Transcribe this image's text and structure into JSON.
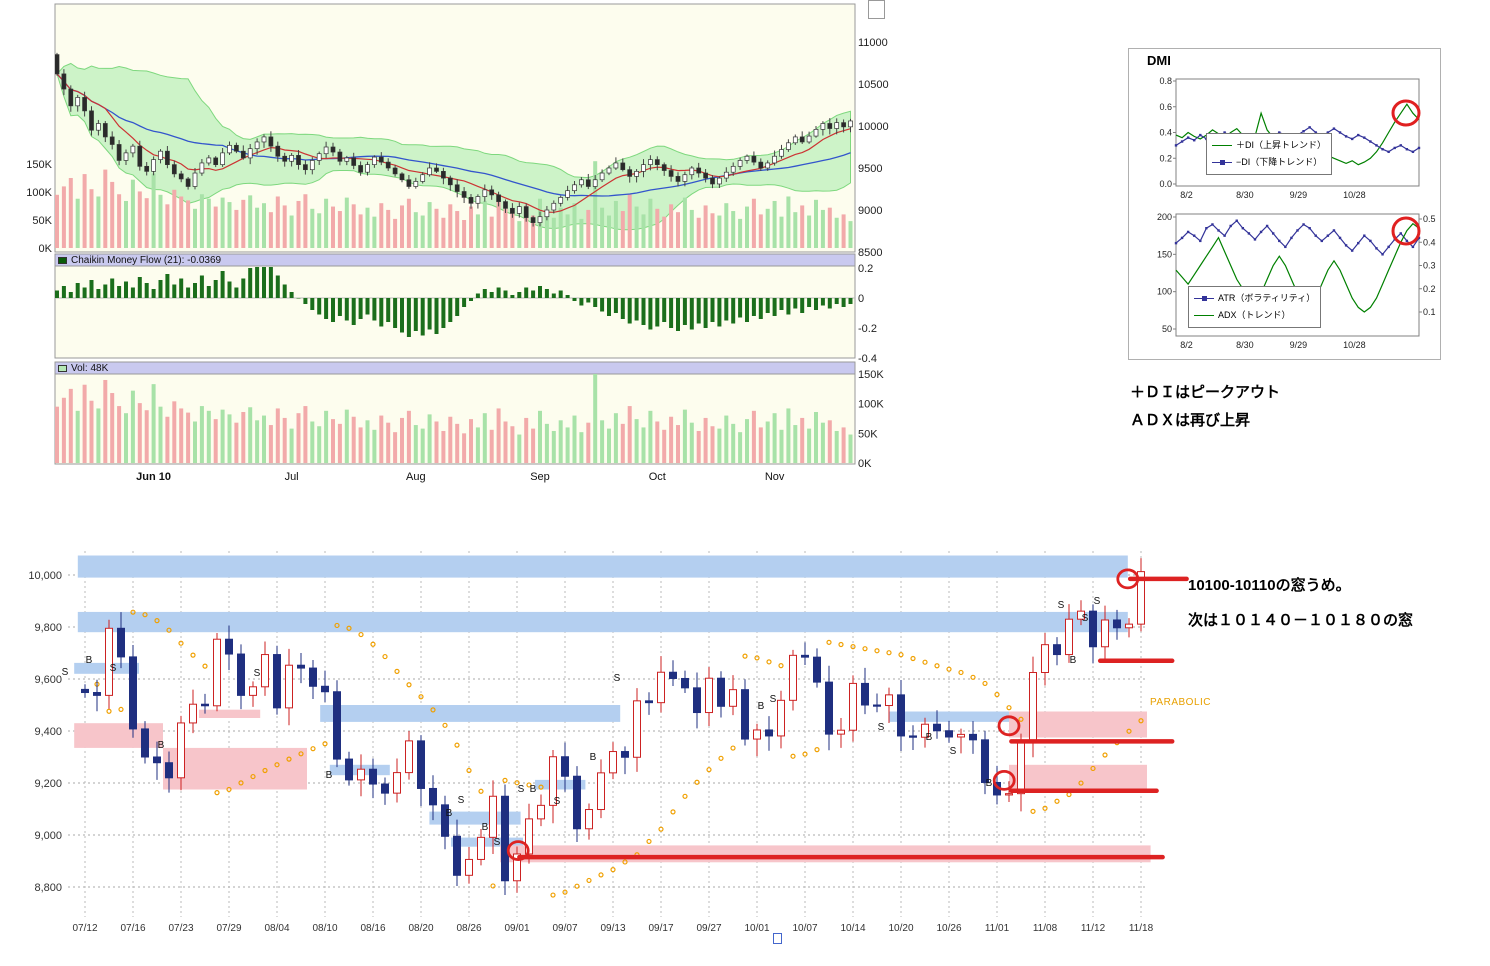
{
  "colors": {
    "plot_bg": "#fdfdee",
    "header_strip": "#c9c9ef",
    "band_green": "#b8eeb8",
    "ma_red": "#cc3333",
    "ma_blue": "#3355cc",
    "chaikin_bar": "#1b6e1b",
    "vol_up": "#a8e2a8",
    "vol_down": "#f2aaaa",
    "zone_blue": "#b4cff0",
    "zone_pink": "#f7c5ca",
    "candle_up_outline": "#cc2222",
    "candle_down": "#1f2f80",
    "psar": "#f0a000",
    "red_annotation": "#dd2222",
    "di_plus_green": "#008000",
    "di_minus_blue": "#333399"
  },
  "dmi_panel": {
    "notes": [
      "＋ＤＩはピークアウト",
      "ＡＤＸは再び上昇"
    ]
  },
  "bottom_chart": {
    "annotations": [
      "10100-10110の窓うめ。",
      "次は１０１４０－１０１８０の窓"
    ]
  },
  "chart_data": [
    {
      "id": "main_price_chart",
      "type": "candlestick",
      "y_ticks": [
        11000,
        10500,
        10000,
        9500,
        9000,
        8500
      ],
      "vol_overlay_ticks": [
        {
          "label": "150K",
          "v": 150
        },
        {
          "label": "100K",
          "v": 100
        },
        {
          "label": "50K",
          "v": 50
        },
        {
          "label": "0K",
          "v": 0
        }
      ],
      "x_labels": [
        {
          "label": "Jun 10",
          "i": 14,
          "bold": true
        },
        {
          "label": "Jul",
          "i": 34
        },
        {
          "label": "Aug",
          "i": 52
        },
        {
          "label": "Sep",
          "i": 70
        },
        {
          "label": "Oct",
          "i": 87
        },
        {
          "label": "Nov",
          "i": 104
        }
      ],
      "overlays": [
        "bollinger-band",
        "ma-short-red",
        "ma-long-blue",
        "volume-overlay"
      ],
      "closes": [
        10620,
        10440,
        10240,
        10340,
        10180,
        9950,
        10030,
        9870,
        9780,
        9590,
        9680,
        9760,
        9520,
        9460,
        9600,
        9700,
        9540,
        9430,
        9370,
        9280,
        9440,
        9560,
        9620,
        9540,
        9680,
        9770,
        9700,
        9620,
        9730,
        9810,
        9870,
        9760,
        9640,
        9580,
        9650,
        9540,
        9480,
        9590,
        9670,
        9750,
        9690,
        9580,
        9620,
        9530,
        9450,
        9540,
        9630,
        9570,
        9500,
        9430,
        9360,
        9280,
        9340,
        9420,
        9500,
        9460,
        9380,
        9300,
        9220,
        9150,
        9080,
        9160,
        9240,
        9180,
        9100,
        9020,
        8960,
        9040,
        8910,
        8850,
        8920,
        9000,
        9080,
        9150,
        9230,
        9300,
        9360,
        9280,
        9360,
        9440,
        9500,
        9560,
        9480,
        9400,
        9460,
        9540,
        9600,
        9540,
        9470,
        9400,
        9340,
        9420,
        9500,
        9440,
        9380,
        9310,
        9380,
        9450,
        9520,
        9590,
        9640,
        9570,
        9500,
        9560,
        9640,
        9720,
        9800,
        9870,
        9810,
        9880,
        9960,
        10030,
        9970,
        10040,
        9990,
        10060
      ]
    },
    {
      "id": "chaikin",
      "type": "bar",
      "label": "Chaikin Money Flow (21): -0.0369",
      "y_ticks": [
        {
          "label": "0.2",
          "v": 0.2
        },
        {
          "label": "0",
          "v": 0
        },
        {
          "label": "-0.2",
          "v": -0.2
        },
        {
          "label": "-0.4",
          "v": -0.4
        }
      ],
      "values": [
        0.05,
        0.08,
        0.04,
        0.1,
        0.07,
        0.12,
        0.06,
        0.09,
        0.13,
        0.08,
        0.11,
        0.07,
        0.14,
        0.1,
        0.06,
        0.12,
        0.16,
        0.09,
        0.13,
        0.07,
        0.1,
        0.15,
        0.08,
        0.12,
        0.18,
        0.11,
        0.07,
        0.13,
        0.2,
        0.24,
        0.26,
        0.21,
        0.15,
        0.09,
        0.04,
        0.0,
        -0.04,
        -0.08,
        -0.11,
        -0.14,
        -0.16,
        -0.12,
        -0.15,
        -0.18,
        -0.14,
        -0.11,
        -0.15,
        -0.19,
        -0.16,
        -0.2,
        -0.23,
        -0.26,
        -0.22,
        -0.25,
        -0.21,
        -0.24,
        -0.2,
        -0.16,
        -0.12,
        -0.06,
        -0.02,
        0.03,
        0.06,
        0.04,
        0.07,
        0.05,
        0.02,
        0.04,
        0.07,
        0.05,
        0.08,
        0.06,
        0.03,
        0.05,
        0.02,
        -0.02,
        -0.05,
        -0.03,
        -0.06,
        -0.09,
        -0.12,
        -0.1,
        -0.14,
        -0.17,
        -0.15,
        -0.18,
        -0.21,
        -0.19,
        -0.16,
        -0.2,
        -0.22,
        -0.18,
        -0.21,
        -0.17,
        -0.2,
        -0.16,
        -0.19,
        -0.15,
        -0.17,
        -0.13,
        -0.16,
        -0.12,
        -0.14,
        -0.1,
        -0.12,
        -0.08,
        -0.11,
        -0.07,
        -0.1,
        -0.06,
        -0.08,
        -0.05,
        -0.07,
        -0.04,
        -0.06,
        -0.04
      ]
    },
    {
      "id": "volume",
      "type": "bar",
      "label": "Vol: 48K",
      "y_ticks": [
        {
          "label": "150K",
          "v": 150
        },
        {
          "label": "100K",
          "v": 100
        },
        {
          "label": "50K",
          "v": 50
        },
        {
          "label": "0K",
          "v": 0
        }
      ],
      "values": [
        95,
        110,
        125,
        88,
        132,
        105,
        92,
        140,
        118,
        96,
        84,
        122,
        101,
        89,
        133,
        95,
        78,
        104,
        92,
        85,
        70,
        96,
        88,
        74,
        90,
        82,
        68,
        86,
        94,
        72,
        80,
        64,
        92,
        76,
        58,
        84,
        96,
        70,
        62,
        88,
        74,
        66,
        90,
        78,
        60,
        72,
        56,
        80,
        68,
        52,
        76,
        88,
        64,
        58,
        82,
        70,
        54,
        78,
        66,
        50,
        74,
        60,
        84,
        56,
        92,
        70,
        62,
        48,
        76,
        58,
        88,
        66,
        54,
        72,
        60,
        80,
        52,
        68,
        155,
        72,
        58,
        84,
        66,
        96,
        74,
        60,
        88,
        70,
        56,
        78,
        64,
        90,
        68,
        54,
        76,
        62,
        58,
        80,
        66,
        52,
        74,
        88,
        60,
        70,
        84,
        56,
        92,
        64,
        76,
        58,
        86,
        68,
        72,
        54,
        60,
        48
      ]
    },
    {
      "id": "dmi",
      "type": "line",
      "title": "DMI",
      "ylim": [
        0,
        0.8
      ],
      "y_ticks": [
        {
          "label": "0.8",
          "v": 0.8
        },
        {
          "label": "0.6",
          "v": 0.6
        },
        {
          "label": "0.4",
          "v": 0.4
        },
        {
          "label": "0.2",
          "v": 0.2
        },
        {
          "label": "0.0",
          "v": 0
        }
      ],
      "x_labels": [
        {
          "label": "8/2",
          "f": 0.03
        },
        {
          "label": "8/30",
          "f": 0.26
        },
        {
          "label": "9/29",
          "f": 0.48
        },
        {
          "label": "10/28",
          "f": 0.7
        }
      ],
      "series": [
        {
          "name": "＋DI（上昇トレンド）",
          "color": "#008000",
          "marker": false,
          "values": [
            0.38,
            0.36,
            0.4,
            0.37,
            0.35,
            0.38,
            0.42,
            0.39,
            0.36,
            0.4,
            0.43,
            0.38,
            0.35,
            0.37,
            0.55,
            0.42,
            0.36,
            0.32,
            0.35,
            0.38,
            0.36,
            0.33,
            0.3,
            0.28,
            0.25,
            0.22,
            0.2,
            0.18,
            0.16,
            0.18,
            0.15,
            0.17,
            0.2,
            0.25,
            0.32,
            0.4,
            0.48,
            0.55,
            0.62,
            0.55,
            0.5
          ]
        },
        {
          "name": "−DI（下降トレンド）",
          "color": "#333399",
          "marker": true,
          "values": [
            0.3,
            0.33,
            0.36,
            0.34,
            0.38,
            0.35,
            0.32,
            0.36,
            0.4,
            0.37,
            0.34,
            0.31,
            0.35,
            0.38,
            0.3,
            0.34,
            0.37,
            0.4,
            0.38,
            0.35,
            0.38,
            0.41,
            0.44,
            0.4,
            0.37,
            0.4,
            0.43,
            0.4,
            0.37,
            0.35,
            0.38,
            0.36,
            0.33,
            0.3,
            0.27,
            0.25,
            0.28,
            0.3,
            0.27,
            0.25,
            0.28
          ]
        }
      ]
    },
    {
      "id": "atr_adx",
      "type": "line",
      "left_ticks": [
        {
          "label": "200",
          "v": 200
        },
        {
          "label": "150",
          "v": 150
        },
        {
          "label": "100",
          "v": 100
        },
        {
          "label": "50",
          "v": 50
        }
      ],
      "right_ticks": [
        {
          "label": "0.5",
          "v": 0.5
        },
        {
          "label": "0.4",
          "v": 0.4
        },
        {
          "label": "0.3",
          "v": 0.3
        },
        {
          "label": "0.2",
          "v": 0.2
        },
        {
          "label": "0.1",
          "v": 0.1
        }
      ],
      "x_labels": [
        {
          "label": "8/2",
          "f": 0.03
        },
        {
          "label": "8/30",
          "f": 0.26
        },
        {
          "label": "9/29",
          "f": 0.48
        },
        {
          "label": "10/28",
          "f": 0.7
        }
      ],
      "series": [
        {
          "name": "ATR（ボラティリティ）",
          "axis": "left",
          "color": "#333399",
          "marker": true,
          "values": [
            165,
            172,
            180,
            175,
            168,
            185,
            190,
            182,
            175,
            188,
            195,
            185,
            178,
            170,
            180,
            188,
            178,
            168,
            160,
            172,
            182,
            190,
            185,
            175,
            168,
            175,
            182,
            172,
            162,
            155,
            165,
            175,
            168,
            158,
            150,
            160,
            170,
            178,
            168,
            160,
            172
          ]
        },
        {
          "name": "ADX（トレンド）",
          "axis": "right",
          "color": "#008000",
          "marker": false,
          "values": [
            0.28,
            0.25,
            0.22,
            0.26,
            0.3,
            0.34,
            0.38,
            0.42,
            0.36,
            0.3,
            0.24,
            0.2,
            0.16,
            0.14,
            0.18,
            0.24,
            0.3,
            0.34,
            0.3,
            0.24,
            0.18,
            0.14,
            0.12,
            0.16,
            0.22,
            0.28,
            0.32,
            0.28,
            0.22,
            0.16,
            0.12,
            0.1,
            0.12,
            0.16,
            0.22,
            0.28,
            0.34,
            0.4,
            0.45,
            0.48,
            0.46
          ]
        }
      ]
    },
    {
      "id": "daily_chart",
      "type": "candlestick",
      "parabolic_label": "PARABOLIC",
      "y_ticks": [
        {
          "label": "10,000",
          "v": 10000
        },
        {
          "label": "9,800",
          "v": 9800
        },
        {
          "label": "9,600",
          "v": 9600
        },
        {
          "label": "9,400",
          "v": 9400
        },
        {
          "label": "9,200",
          "v": 9200
        },
        {
          "label": "9,000",
          "v": 9000
        },
        {
          "label": "8,800",
          "v": 8800
        }
      ],
      "x_labels": [
        "07/12",
        "07/16",
        "07/23",
        "07/29",
        "08/04",
        "08/10",
        "08/16",
        "08/20",
        "08/26",
        "09/01",
        "09/07",
        "09/13",
        "09/17",
        "09/27",
        "10/01",
        "10/07",
        "10/14",
        "10/20",
        "10/26",
        "11/01",
        "11/08",
        "11/12",
        "11/18"
      ],
      "closes": [
        9548,
        9537,
        9795,
        9685,
        9408,
        9300,
        9278,
        9220,
        9431,
        9503,
        9497,
        9753,
        9696,
        9537,
        9570,
        9694,
        9489,
        9653,
        9642,
        9572,
        9551,
        9292,
        9212,
        9253,
        9196,
        9161,
        9240,
        9362,
        9179,
        9116,
        8995,
        8845,
        8906,
        8991,
        9149,
        8824,
        8927,
        9062,
        9114,
        9301,
        9226,
        9024,
        9098,
        9239,
        9321,
        9299,
        9516,
        9509,
        9626,
        9602,
        9566,
        9471,
        9603,
        9495,
        9559,
        9369,
        9404,
        9381,
        9518,
        9691,
        9684,
        9588,
        9388,
        9403,
        9583,
        9500,
        9498,
        9539,
        9381,
        9376,
        9426,
        9401,
        9377,
        9387,
        9366,
        9202,
        9154,
        9159,
        9358,
        9625,
        9732,
        9694,
        9830,
        9861,
        9724,
        9827,
        9797,
        9811,
        10013
      ],
      "zones": [
        {
          "i1": -0.6,
          "i2": 86.9,
          "p1": 9990,
          "p2": 10075,
          "color": "blue"
        },
        {
          "i1": -0.6,
          "i2": 86.9,
          "p1": 9780,
          "p2": 9858,
          "color": "blue"
        },
        {
          "i1": -0.9,
          "i2": 4.5,
          "p1": 9620,
          "p2": 9662,
          "color": "blue"
        },
        {
          "i1": -0.9,
          "i2": 6.5,
          "p1": 9335,
          "p2": 9430,
          "color": "pink"
        },
        {
          "i1": 6.5,
          "i2": 18.5,
          "p1": 9175,
          "p2": 9335,
          "color": "pink"
        },
        {
          "i1": 9.5,
          "i2": 14.6,
          "p1": 9450,
          "p2": 9482,
          "color": "pink"
        },
        {
          "i1": 19.6,
          "i2": 44.6,
          "p1": 9435,
          "p2": 9500,
          "color": "blue"
        },
        {
          "i1": 20.4,
          "i2": 25.4,
          "p1": 9230,
          "p2": 9270,
          "color": "blue"
        },
        {
          "i1": 28.7,
          "i2": 36.3,
          "p1": 9040,
          "p2": 9090,
          "color": "blue"
        },
        {
          "i1": 30.5,
          "i2": 36.5,
          "p1": 8955,
          "p2": 8990,
          "color": "blue"
        },
        {
          "i1": 34.6,
          "i2": 88.8,
          "p1": 8895,
          "p2": 8960,
          "color": "pink"
        },
        {
          "i1": 37.5,
          "i2": 41.7,
          "p1": 9175,
          "p2": 9212,
          "color": "blue"
        },
        {
          "i1": 67.0,
          "i2": 77.0,
          "p1": 9435,
          "p2": 9475,
          "color": "blue"
        },
        {
          "i1": 77.0,
          "i2": 88.5,
          "p1": 9375,
          "p2": 9475,
          "color": "pink"
        },
        {
          "i1": 77.0,
          "i2": 88.5,
          "p1": 9175,
          "p2": 9270,
          "color": "pink"
        }
      ],
      "signals": [
        {
          "i": -1,
          "p": 9627,
          "t": "S"
        },
        {
          "i": 1,
          "p": 9673,
          "t": "B"
        },
        {
          "i": 3,
          "p": 9642,
          "t": "S"
        },
        {
          "i": 7,
          "p": 9346,
          "t": "B"
        },
        {
          "i": 15,
          "p": 9623,
          "t": "S"
        },
        {
          "i": 21,
          "p": 9231,
          "t": "B"
        },
        {
          "i": 31,
          "p": 9085,
          "t": "B"
        },
        {
          "i": 32,
          "p": 9135,
          "t": "S"
        },
        {
          "i": 34,
          "p": 9031,
          "t": "B"
        },
        {
          "i": 35,
          "p": 8973,
          "t": "S"
        },
        {
          "i": 37,
          "p": 9177,
          "t": "S"
        },
        {
          "i": 38,
          "p": 9177,
          "t": "B"
        },
        {
          "i": 40,
          "p": 9131,
          "t": "S"
        },
        {
          "i": 43,
          "p": 9300,
          "t": "B"
        },
        {
          "i": 45,
          "p": 9604,
          "t": "S"
        },
        {
          "i": 57,
          "p": 9496,
          "t": "B"
        },
        {
          "i": 58,
          "p": 9523,
          "t": "S"
        },
        {
          "i": 67,
          "p": 9415,
          "t": "S"
        },
        {
          "i": 71,
          "p": 9377,
          "t": "B"
        },
        {
          "i": 73,
          "p": 9323,
          "t": "S"
        },
        {
          "i": 76,
          "p": 9200,
          "t": "B"
        },
        {
          "i": 82,
          "p": 9885,
          "t": "S"
        },
        {
          "i": 83,
          "p": 9673,
          "t": "B"
        },
        {
          "i": 84,
          "p": 9835,
          "t": "S"
        },
        {
          "i": 85,
          "p": 9900,
          "t": "S"
        }
      ],
      "red_lines": [
        {
          "i1": 87.1,
          "i2": 91.8,
          "p": 9985
        },
        {
          "i1": 84.6,
          "i2": 90.6,
          "p": 9670
        },
        {
          "i1": 77.2,
          "i2": 90.6,
          "p": 9360
        },
        {
          "i1": 77.2,
          "i2": 89.3,
          "p": 9170
        },
        {
          "i1": 36.2,
          "i2": 89.8,
          "p": 8915
        }
      ],
      "red_circles": [
        {
          "i": 86.9,
          "p": 9985
        },
        {
          "i": 77,
          "p": 9420
        },
        {
          "i": 76.6,
          "p": 9210
        },
        {
          "i": 36.1,
          "p": 8940
        }
      ]
    }
  ]
}
